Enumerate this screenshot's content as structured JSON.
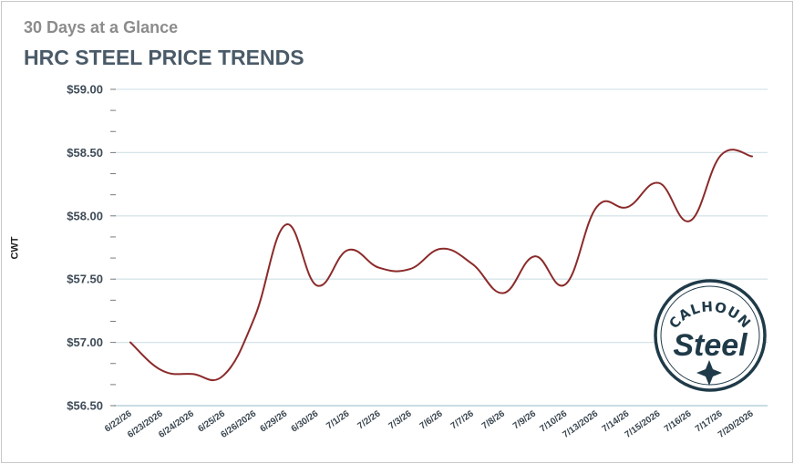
{
  "header": {
    "subtitle": "30 Days at a Glance",
    "title": "HRC STEEL PRICE TRENDS"
  },
  "logo": {
    "top_text": "CALHOUN",
    "script_text": "Steel"
  },
  "chart_data": {
    "type": "line",
    "title": "HRC STEEL PRICE TRENDS",
    "subtitle": "30 Days at a Glance",
    "xlabel": "",
    "ylabel": "CWT",
    "ylim": [
      56.5,
      59.0
    ],
    "y_ticks": [
      56.5,
      57.0,
      57.5,
      58.0,
      58.5,
      59.0
    ],
    "y_tick_labels": [
      "$56.50",
      "$57.00",
      "$57.50",
      "$58.00",
      "$58.50",
      "$59.00"
    ],
    "grid": true,
    "legend": "none",
    "categories": [
      "6/22/26",
      "6/23/2026",
      "6/24/2026",
      "6/25/26",
      "6/26/2026",
      "6/29/26",
      "6/30/26",
      "7/1/26",
      "7/2/26",
      "7/3/26",
      "7/6/26",
      "7/7/26",
      "7/8/26",
      "7/9/26",
      "7/10/26",
      "7/13/2026",
      "7/14/26",
      "7/15/2026",
      "7/16/26",
      "7/17/26",
      "7/20/2026"
    ],
    "series": [
      {
        "color": "#8b2a2a",
        "values": [
          57.0,
          56.78,
          56.75,
          56.74,
          57.2,
          57.93,
          57.45,
          57.73,
          57.59,
          57.58,
          57.74,
          57.62,
          57.39,
          57.68,
          57.46,
          58.07,
          58.07,
          58.26,
          57.96,
          58.48,
          58.47
        ]
      }
    ]
  }
}
